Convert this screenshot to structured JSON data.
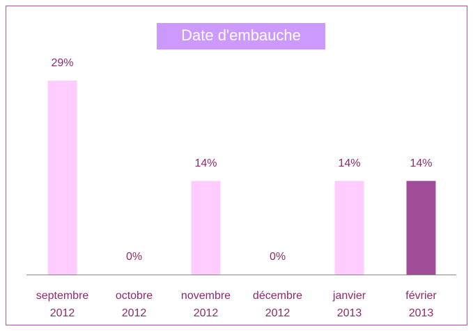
{
  "chart_data": {
    "type": "bar",
    "title": "Date d'embauche",
    "categories": [
      "septembre 2012",
      "octobre 2012",
      "novembre 2012",
      "décembre 2012",
      "janvier 2013",
      "février 2013"
    ],
    "values": [
      29,
      0,
      14,
      0,
      14,
      14
    ],
    "value_labels": [
      "29%",
      "0%",
      "14%",
      "0%",
      "14%",
      "14%"
    ],
    "colors": [
      "#ffccff",
      "#ffccff",
      "#ffccff",
      "#ffccff",
      "#ffccff",
      "#a04c98"
    ],
    "ylim": [
      0,
      30
    ]
  }
}
